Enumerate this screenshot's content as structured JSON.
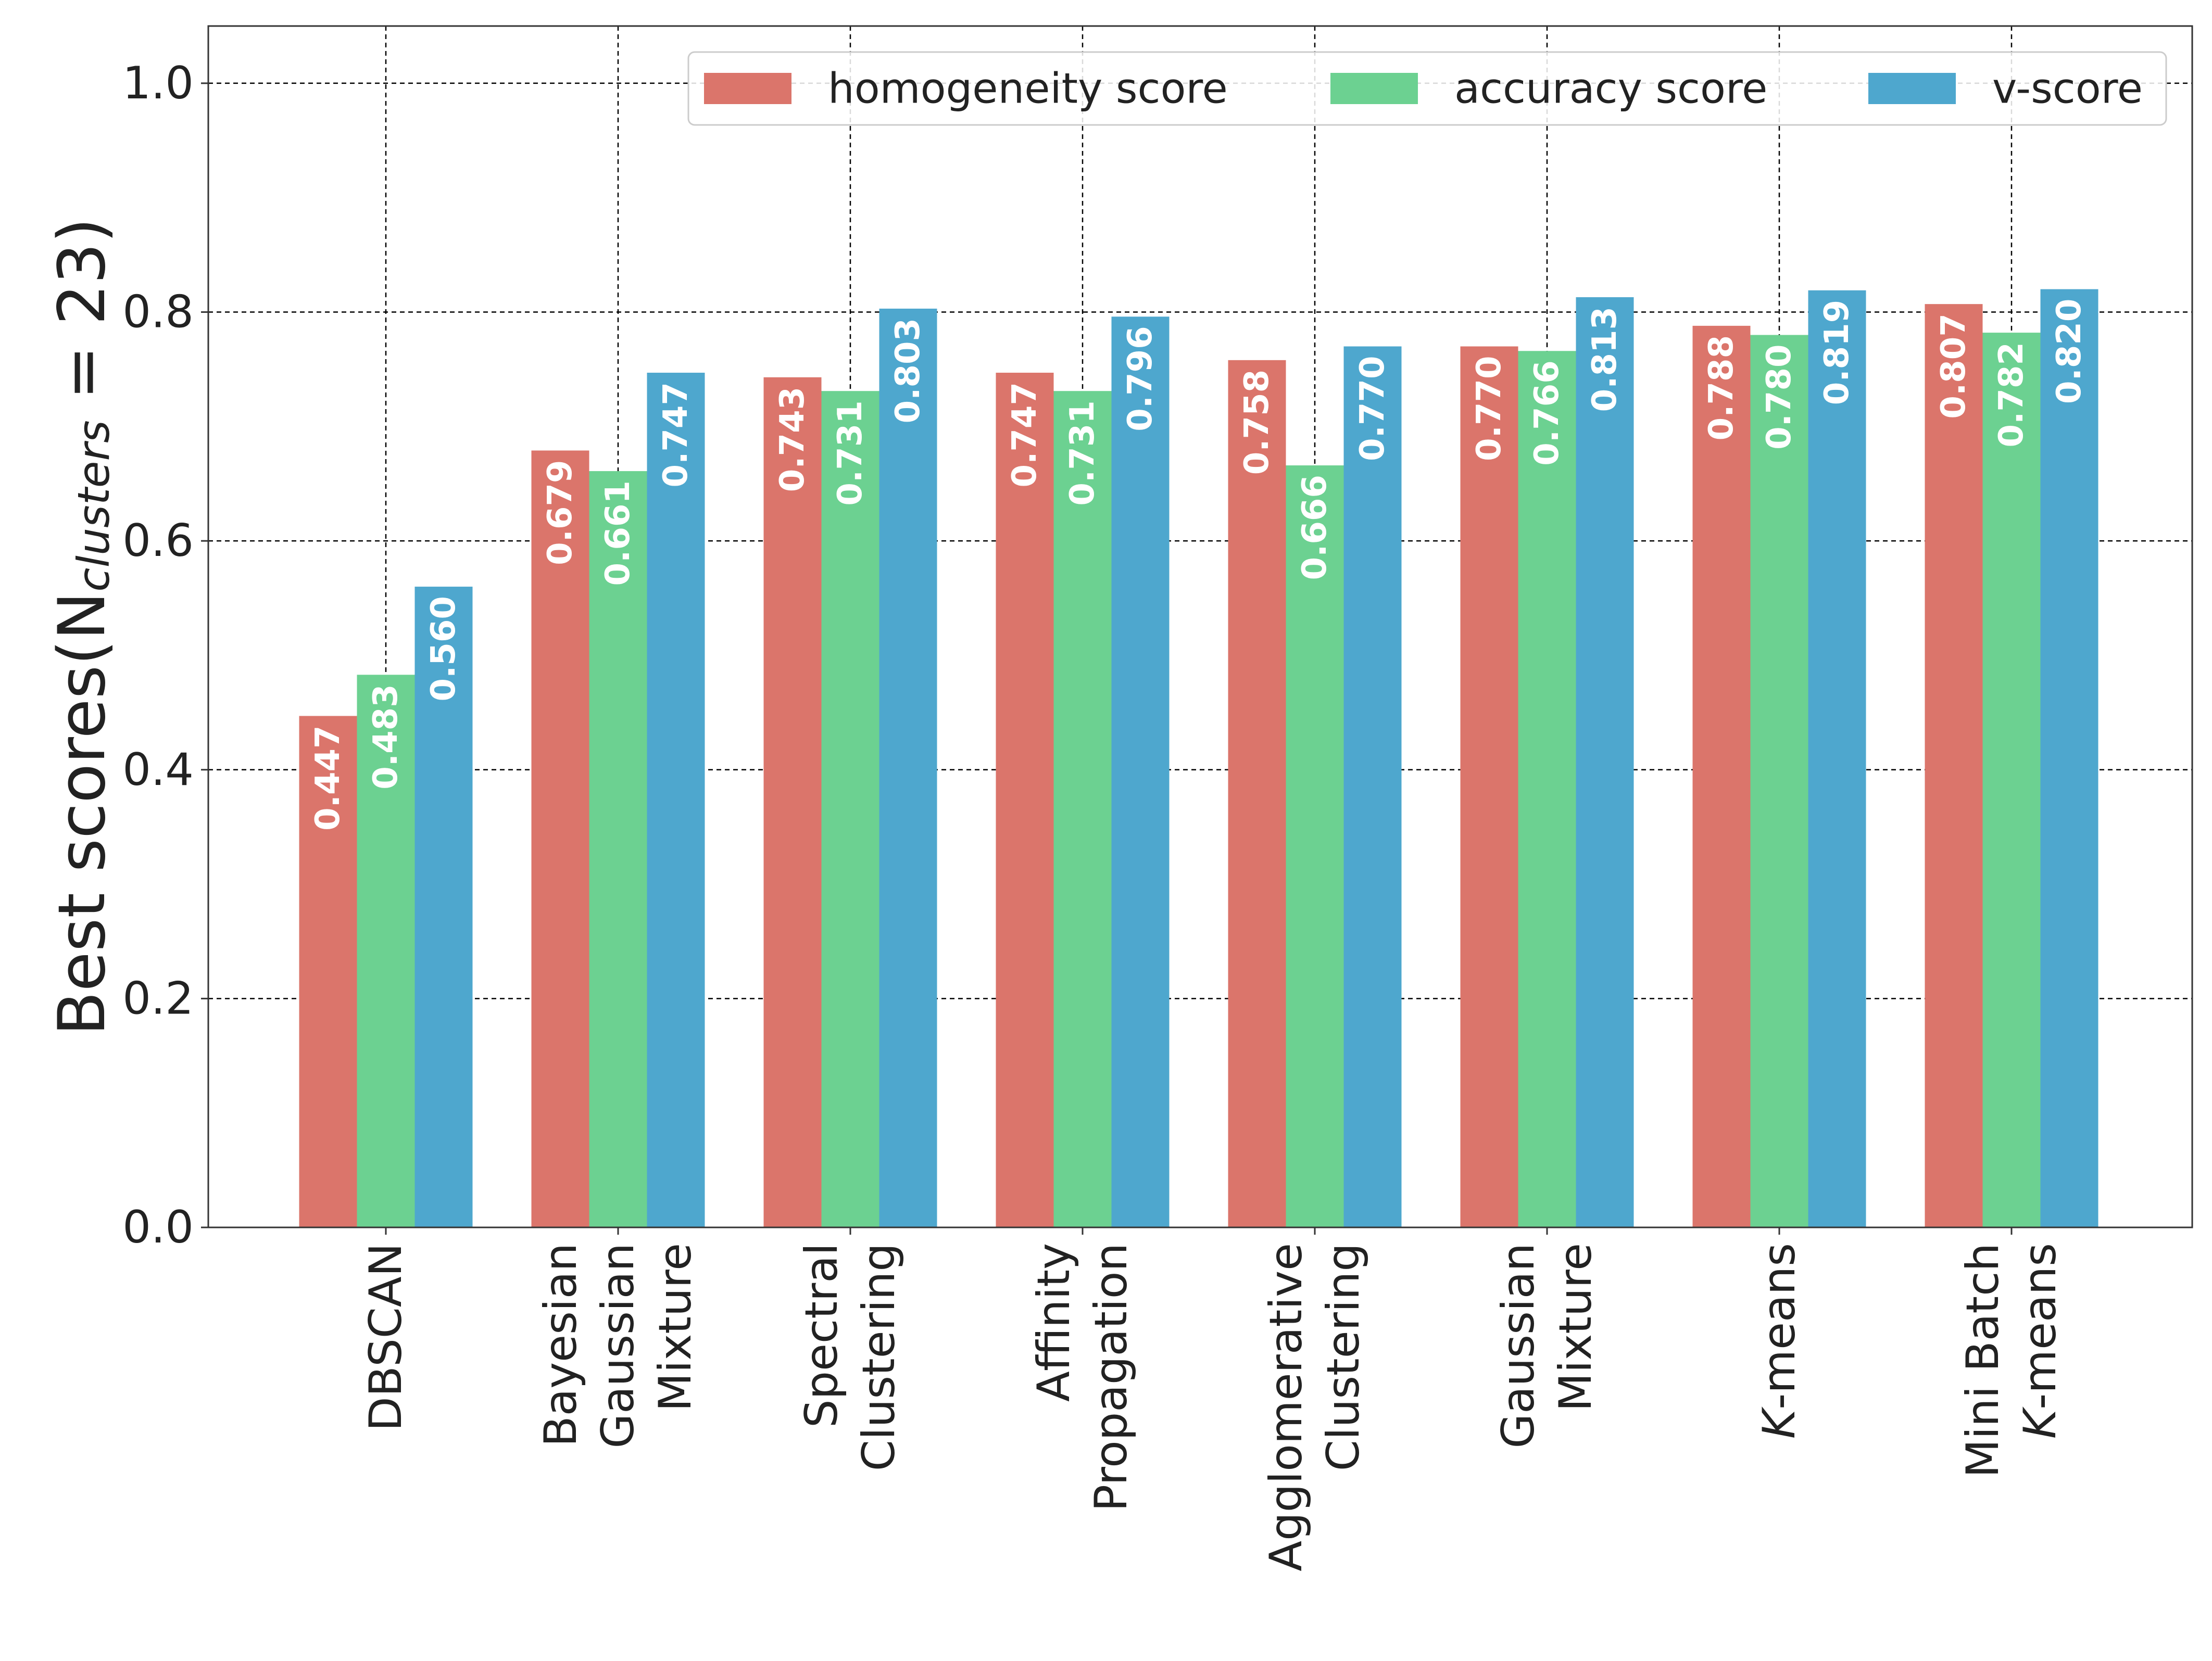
{
  "chart_data": {
    "type": "bar",
    "ylabel": {
      "prefix": "Best scores(N",
      "subscript": "clusters",
      "suffix": " = 23)"
    },
    "ylim": [
      0,
      1.05
    ],
    "yticks": [
      0.0,
      0.2,
      0.4,
      0.6,
      0.8,
      1.0
    ],
    "ytick_labels": [
      "0.0",
      "0.2",
      "0.4",
      "0.6",
      "0.8",
      "1.0"
    ],
    "grid": true,
    "legend_position": "top-right",
    "categories": [
      {
        "lines": [
          "DBSCAN"
        ],
        "italic": [
          false
        ]
      },
      {
        "lines": [
          "Bayesian",
          "Gaussian",
          "Mixture"
        ],
        "italic": [
          false,
          false,
          false
        ]
      },
      {
        "lines": [
          "Spectral",
          "Clustering"
        ],
        "italic": [
          false,
          false
        ]
      },
      {
        "lines": [
          "Affinity",
          "Propagation"
        ],
        "italic": [
          false,
          false
        ]
      },
      {
        "lines": [
          "Agglomerative",
          "Clustering"
        ],
        "italic": [
          false,
          false
        ]
      },
      {
        "lines": [
          "Gaussian",
          "Mixture"
        ],
        "italic": [
          false,
          false
        ]
      },
      {
        "lines": [
          {
            "italic": "K",
            "rest": "-means"
          }
        ],
        "italic": [
          true
        ]
      },
      {
        "lines": [
          "Mini Batch",
          {
            "italic": "K",
            "rest": "-means"
          }
        ],
        "italic": [
          false,
          true
        ]
      }
    ],
    "series": [
      {
        "name": "homogeneity score",
        "color": "#DB756B",
        "values": [
          0.447,
          0.679,
          0.743,
          0.747,
          0.758,
          0.77,
          0.788,
          0.807
        ],
        "labels": [
          "0.447",
          "0.679",
          "0.743",
          "0.747",
          "0.758",
          "0.770",
          "0.788",
          "0.807"
        ]
      },
      {
        "name": "accuracy score",
        "color": "#6CD191",
        "values": [
          0.483,
          0.661,
          0.731,
          0.731,
          0.666,
          0.766,
          0.78,
          0.782
        ],
        "labels": [
          "0.483",
          "0.661",
          "0.731",
          "0.731",
          "0.666",
          "0.766",
          "0.780",
          "0.782"
        ]
      },
      {
        "name": "v-score",
        "color": "#4EA7CE",
        "values": [
          0.56,
          0.747,
          0.803,
          0.796,
          0.77,
          0.813,
          0.819,
          0.82
        ],
        "labels": [
          "0.560",
          "0.747",
          "0.803",
          "0.796",
          "0.770",
          "0.813",
          "0.819",
          "0.820"
        ]
      }
    ]
  }
}
